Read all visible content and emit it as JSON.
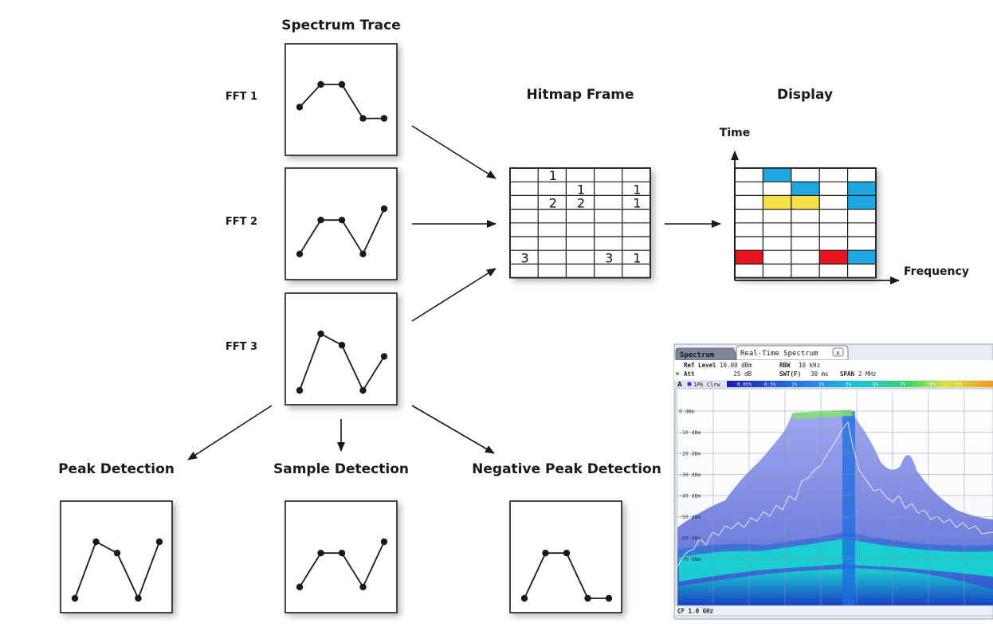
{
  "titles": {
    "spectrum_trace": "Spectrum Trace",
    "hitmap_frame": "Hitmap Frame",
    "display": "Display",
    "peak": "Peak Detection",
    "sample": "Sample Detection",
    "negative_peak": "Negative Peak Detection"
  },
  "fft_labels": [
    "FFT 1",
    "FFT 2",
    "FFT 3"
  ],
  "display_axes": {
    "y": "Time",
    "x": "Frequency"
  },
  "traces": {
    "fft1": [
      3,
      1,
      1,
      4,
      4
    ],
    "fft2": [
      5,
      2,
      2,
      5,
      1
    ],
    "fft3": [
      6,
      1,
      2,
      6,
      3
    ],
    "peak": [
      6,
      1,
      2,
      6,
      1
    ],
    "sample": [
      5,
      2,
      2,
      5,
      1
    ],
    "negpeak": [
      6,
      2,
      2,
      6,
      6
    ]
  },
  "hitmap": {
    "rows": 8,
    "cols": 5,
    "cells": [
      {
        "row": 0,
        "col": 1,
        "value": "1"
      },
      {
        "row": 1,
        "col": 2,
        "value": "1"
      },
      {
        "row": 1,
        "col": 4,
        "value": "1"
      },
      {
        "row": 2,
        "col": 1,
        "value": "2"
      },
      {
        "row": 2,
        "col": 2,
        "value": "2"
      },
      {
        "row": 2,
        "col": 4,
        "value": "1"
      },
      {
        "row": 6,
        "col": 0,
        "value": "3"
      },
      {
        "row": 6,
        "col": 3,
        "value": "3"
      },
      {
        "row": 6,
        "col": 4,
        "value": "1"
      }
    ]
  },
  "display_grid": {
    "rows": 8,
    "cols": 5,
    "colors": {
      "blue": "#1ea7e1",
      "yellow": "#f5e14a",
      "red": "#e8141e"
    },
    "cells": [
      {
        "row": 0,
        "col": 1,
        "color": "blue"
      },
      {
        "row": 1,
        "col": 2,
        "color": "blue"
      },
      {
        "row": 1,
        "col": 4,
        "color": "blue"
      },
      {
        "row": 2,
        "col": 1,
        "color": "yellow"
      },
      {
        "row": 2,
        "col": 2,
        "color": "yellow"
      },
      {
        "row": 2,
        "col": 4,
        "color": "blue"
      },
      {
        "row": 6,
        "col": 0,
        "color": "red"
      },
      {
        "row": 6,
        "col": 3,
        "color": "red"
      },
      {
        "row": 6,
        "col": 4,
        "color": "blue"
      }
    ]
  },
  "screenshot": {
    "tabs": [
      "Spectrum",
      "Real-Time Spectrum"
    ],
    "close_glyph": "x",
    "params": [
      {
        "label": "Ref Level",
        "value": "10.00 dBm"
      },
      {
        "label": "RBW",
        "value": "10 kHz"
      },
      {
        "label": "Att",
        "value": "25 dB"
      },
      {
        "label": "SWT(F)",
        "value": "30 ms"
      },
      {
        "label": "SPAN",
        "value": "2 MHz"
      }
    ],
    "trace_badge": "A",
    "trace_label": "1Pk Clrw",
    "scale_ticks": [
      "0.05%",
      "0.5%",
      "1%",
      "2%",
      "3%",
      "5%",
      "7%",
      "10%",
      "15%"
    ],
    "y_labels": [
      "0 dBm",
      "-10 dBm",
      "-20 dBm",
      "-30 dBm",
      "-40 dBm",
      "-50 dBm",
      "-60 dBm",
      "-70 dBm"
    ],
    "footer": "CF 1.0 GHz"
  }
}
